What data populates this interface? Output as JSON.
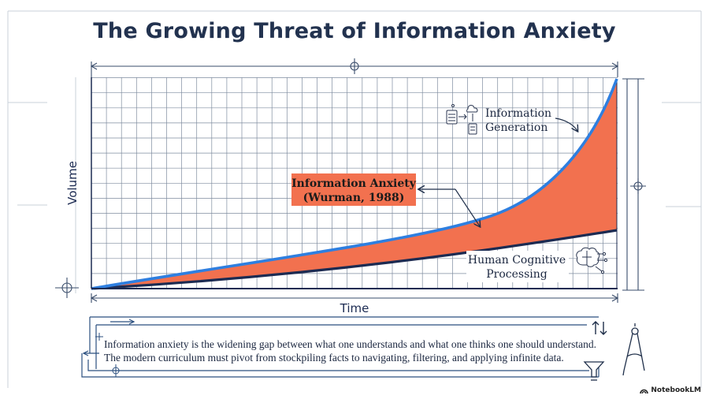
{
  "title": "The Growing Threat of Information Anxiety",
  "axes": {
    "x_label": "Time",
    "y_label": "Volume"
  },
  "curves": {
    "generation": {
      "label_line1": "Information",
      "label_line2": "Generation",
      "color": "#2e7fe0"
    },
    "cognition": {
      "label_line1": "Human Cognitive",
      "label_line2": "Processing",
      "color": "#1c2b52"
    }
  },
  "gap": {
    "label_line1": "Information Anxiety",
    "label_line2": "(Wurman, 1988)",
    "color": "#f2714f"
  },
  "caption": {
    "line1": "Information anxiety is the widening gap between what one understands and what one thinks one should understand.",
    "line2": "The modern curriculum must pivot from stockpiling facts to navigating, filtering, and applying infinite data."
  },
  "brand": "NotebookLM",
  "icons": [
    "data-flow-icon",
    "brain-circuit-icon",
    "funnel-icon",
    "compass-icon",
    "crosshair-icon",
    "up-down-arrows-icon"
  ]
}
